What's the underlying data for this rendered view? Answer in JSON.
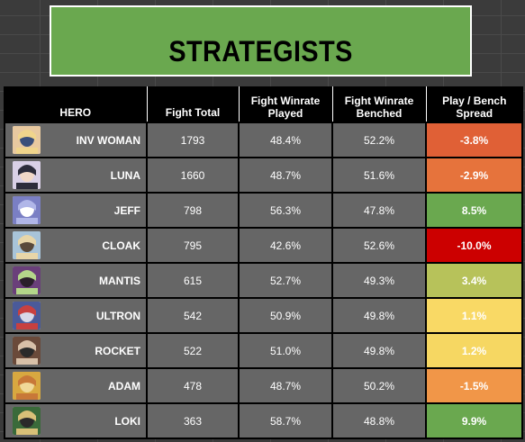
{
  "banner": {
    "title": "STRATEGISTS"
  },
  "table": {
    "headers": {
      "hero": "HERO",
      "fight_total": "Fight Total",
      "winrate_played": "Fight Winrate\nPlayed",
      "winrate_benched": "Fight Winrate\nBenched",
      "spread": "Play / Bench\nSpread"
    },
    "rows": [
      {
        "hero": "INV WOMAN",
        "fight_total": "1793",
        "winrate_played": "48.4%",
        "winrate_benched": "52.2%",
        "spread": "-3.8%",
        "spread_color": "#e06036",
        "icon": "invisible-woman-portrait-icon"
      },
      {
        "hero": "LUNA",
        "fight_total": "1660",
        "winrate_played": "48.7%",
        "winrate_benched": "51.6%",
        "spread": "-2.9%",
        "spread_color": "#e6733c",
        "icon": "luna-snow-portrait-icon"
      },
      {
        "hero": "JEFF",
        "fight_total": "798",
        "winrate_played": "56.3%",
        "winrate_benched": "47.8%",
        "spread": "8.5%",
        "spread_color": "#6aa84f",
        "icon": "jeff-the-land-shark-portrait-icon"
      },
      {
        "hero": "CLOAK",
        "fight_total": "795",
        "winrate_played": "42.6%",
        "winrate_benched": "52.6%",
        "spread": "-10.0%",
        "spread_color": "#cc0000",
        "icon": "cloak-and-dagger-portrait-icon"
      },
      {
        "hero": "MANTIS",
        "fight_total": "615",
        "winrate_played": "52.7%",
        "winrate_benched": "49.3%",
        "spread": "3.4%",
        "spread_color": "#b7c25a",
        "icon": "mantis-portrait-icon"
      },
      {
        "hero": "ULTRON",
        "fight_total": "542",
        "winrate_played": "50.9%",
        "winrate_benched": "49.8%",
        "spread": "1.1%",
        "spread_color": "#f9d965",
        "icon": "ultron-portrait-icon"
      },
      {
        "hero": "ROCKET",
        "fight_total": "522",
        "winrate_played": "51.0%",
        "winrate_benched": "49.8%",
        "spread": "1.2%",
        "spread_color": "#f6d762",
        "icon": "rocket-raccoon-portrait-icon"
      },
      {
        "hero": "ADAM",
        "fight_total": "478",
        "winrate_played": "48.7%",
        "winrate_benched": "50.2%",
        "spread": "-1.5%",
        "spread_color": "#f19648",
        "icon": "adam-warlock-portrait-icon"
      },
      {
        "hero": "LOKI",
        "fight_total": "363",
        "winrate_played": "58.7%",
        "winrate_benched": "48.8%",
        "spread": "9.9%",
        "spread_color": "#6aa84f",
        "icon": "loki-portrait-icon"
      }
    ]
  }
}
